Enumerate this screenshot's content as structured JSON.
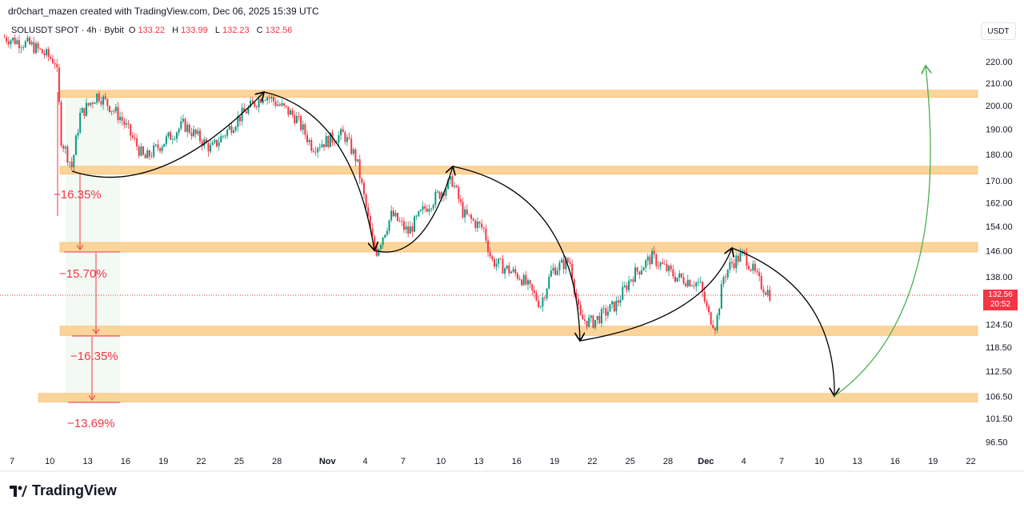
{
  "header": {
    "credit": "dr0chart_mazen created with TradingView.com, Dec 06, 2025 15:39 UTC",
    "symbol": "SOLUSDT SPOT · 4h · Bybit",
    "o_label": "O",
    "o": "133.22",
    "h_label": "H",
    "h": "133.99",
    "l_label": "L",
    "l": "132.23",
    "c_label": "C",
    "c": "132.56"
  },
  "price_axis": {
    "unit": "USDT",
    "last_price": "132.56",
    "countdown": "20:52"
  },
  "logo": "TradingView",
  "annotations": {
    "pct": [
      "−16.35%",
      "−15.70%",
      "−16.35%",
      "−13.69%"
    ]
  },
  "colors": {
    "up": "#089981",
    "down": "#f23645",
    "zone": "#fbd49a",
    "arrow": "#000000",
    "target_arrow": "#4caf50"
  },
  "chart_data": {
    "type": "candlestick",
    "title": "SOLUSDT SPOT · 4h · Bybit",
    "y_scale": "log",
    "ylim": [
      94,
      236
    ],
    "y_ticks": [
      "220.00",
      "210.00",
      "200.00",
      "190.00",
      "180.00",
      "170.00",
      "162.00",
      "154.00",
      "146.00",
      "138.00",
      "124.50",
      "118.50",
      "112.50",
      "106.50",
      "101.50",
      "96.50"
    ],
    "x_ticks": [
      {
        "day": 0,
        "label": "7"
      },
      {
        "day": 3,
        "label": "10"
      },
      {
        "day": 6,
        "label": "13"
      },
      {
        "day": 9,
        "label": "16"
      },
      {
        "day": 12,
        "label": "19"
      },
      {
        "day": 15,
        "label": "22"
      },
      {
        "day": 18,
        "label": "25"
      },
      {
        "day": 21,
        "label": "28"
      },
      {
        "day": 25,
        "label": "Nov"
      },
      {
        "day": 28,
        "label": "4"
      },
      {
        "day": 31,
        "label": "7"
      },
      {
        "day": 34,
        "label": "10"
      },
      {
        "day": 37,
        "label": "13"
      },
      {
        "day": 40,
        "label": "16"
      },
      {
        "day": 43,
        "label": "19"
      },
      {
        "day": 46,
        "label": "22"
      },
      {
        "day": 49,
        "label": "25"
      },
      {
        "day": 52,
        "label": "28"
      },
      {
        "day": 55,
        "label": "Dec"
      },
      {
        "day": 58,
        "label": "4"
      },
      {
        "day": 61,
        "label": "7"
      },
      {
        "day": 64,
        "label": "10"
      },
      {
        "day": 67,
        "label": "13"
      },
      {
        "day": 70,
        "label": "16"
      },
      {
        "day": 73,
        "label": "19"
      },
      {
        "day": 76,
        "label": "22"
      }
    ],
    "price_path": [
      [
        -0.6,
        232
      ],
      [
        1.5,
        228
      ],
      [
        3.5,
        220
      ],
      [
        3.9,
        186
      ],
      [
        4.75,
        175
      ],
      [
        5.4,
        196
      ],
      [
        6.8,
        205
      ],
      [
        8.6,
        195
      ],
      [
        10.5,
        178
      ],
      [
        13.6,
        192
      ],
      [
        15.8,
        182
      ],
      [
        18,
        195
      ],
      [
        20,
        205
      ],
      [
        22.5,
        195
      ],
      [
        23.8,
        183
      ],
      [
        26.3,
        188
      ],
      [
        27.3,
        178
      ],
      [
        28.5,
        150
      ],
      [
        28.9,
        146
      ],
      [
        30.1,
        158
      ],
      [
        31.4,
        152
      ],
      [
        32.7,
        160
      ],
      [
        34.9,
        170
      ],
      [
        35.8,
        158
      ],
      [
        37.4,
        153
      ],
      [
        38,
        143
      ],
      [
        40.3,
        138
      ],
      [
        41.9,
        130
      ],
      [
        42.8,
        140
      ],
      [
        44.2,
        143
      ],
      [
        45,
        126
      ],
      [
        46,
        125
      ],
      [
        47.9,
        130
      ],
      [
        49.1,
        138
      ],
      [
        50.7,
        144
      ],
      [
        52.6,
        138
      ],
      [
        54.5,
        136
      ],
      [
        55.2,
        127
      ],
      [
        55.8,
        124
      ],
      [
        56.4,
        138
      ],
      [
        57,
        142
      ],
      [
        58,
        145
      ],
      [
        59.3,
        136
      ],
      [
        60.2,
        132.5
      ]
    ],
    "zones": [
      [
        203.6,
        206.8
      ],
      [
        172.4,
        175.4
      ],
      [
        145.6,
        148.7
      ],
      [
        121.5,
        124
      ],
      [
        105.2,
        107.2
      ]
    ],
    "last_price": 132.56
  }
}
